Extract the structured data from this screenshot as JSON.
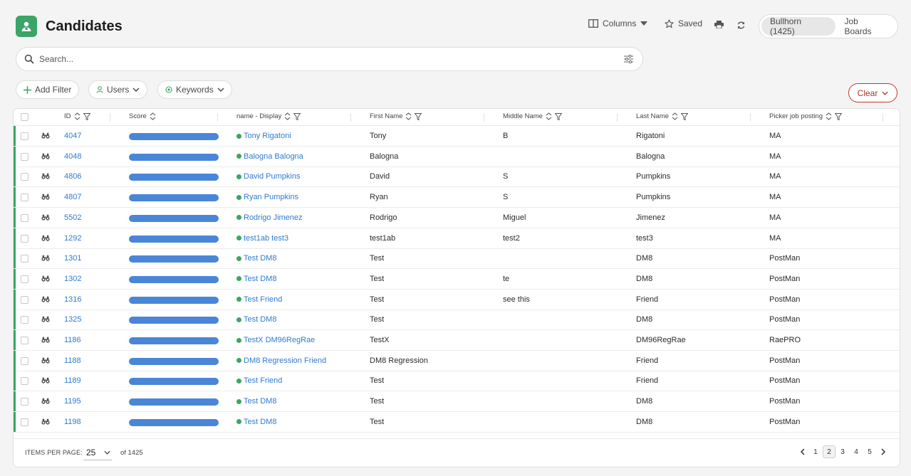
{
  "header": {
    "title": "Candidates",
    "columns_label": "Columns",
    "saved_label": "Saved",
    "tabs": [
      {
        "label": "Bullhorn (1425)",
        "active": true
      },
      {
        "label": "Job Boards",
        "active": false
      }
    ]
  },
  "search": {
    "placeholder": "Search..."
  },
  "filters": {
    "add_label": "Add Filter",
    "users_label": "Users",
    "keywords_label": "Keywords",
    "clear_label": "Clear"
  },
  "columns": [
    "ID",
    "Score",
    "name - Display",
    "First Name",
    "Middle Name",
    "Last Name",
    "Picker job posting"
  ],
  "rows": [
    {
      "id": "4047",
      "score": 1.0,
      "name": "Tony Rigatoni",
      "first": "Tony",
      "middle": "B",
      "last": "Rigatoni",
      "picker": "MA"
    },
    {
      "id": "4048",
      "score": 1.0,
      "name": "Balogna Balogna",
      "first": "Balogna",
      "middle": "",
      "last": "Balogna",
      "picker": "MA"
    },
    {
      "id": "4806",
      "score": 1.0,
      "name": "David Pumpkins",
      "first": "David",
      "middle": "S",
      "last": "Pumpkins",
      "picker": "MA"
    },
    {
      "id": "4807",
      "score": 1.0,
      "name": "Ryan Pumpkins",
      "first": "Ryan",
      "middle": "S",
      "last": "Pumpkins",
      "picker": "MA"
    },
    {
      "id": "5502",
      "score": 1.0,
      "name": "Rodrigo Jimenez",
      "first": "Rodrigo",
      "middle": "Miguel",
      "last": "Jimenez",
      "picker": "MA"
    },
    {
      "id": "1292",
      "score": 1.0,
      "name": "test1ab test3",
      "first": "test1ab",
      "middle": "test2",
      "last": "test3",
      "picker": "MA"
    },
    {
      "id": "1301",
      "score": 1.0,
      "name": "Test DM8",
      "first": "Test",
      "middle": "",
      "last": "DM8",
      "picker": "PostMan"
    },
    {
      "id": "1302",
      "score": 1.0,
      "name": "Test DM8",
      "first": "Test",
      "middle": "te",
      "last": "DM8",
      "picker": "PostMan"
    },
    {
      "id": "1316",
      "score": 1.0,
      "name": "Test Friend",
      "first": "Test",
      "middle": "see this",
      "last": "Friend",
      "picker": "PostMan"
    },
    {
      "id": "1325",
      "score": 1.0,
      "name": "Test DM8",
      "first": "Test",
      "middle": "",
      "last": "DM8",
      "picker": "PostMan"
    },
    {
      "id": "1186",
      "score": 1.0,
      "name": "TestX DM96RegRae",
      "first": "TestX",
      "middle": "",
      "last": "DM96RegRae",
      "picker": "RaePRO"
    },
    {
      "id": "1188",
      "score": 1.0,
      "name": "DM8 Regression Friend",
      "first": "DM8 Regression",
      "middle": "",
      "last": "Friend",
      "picker": "PostMan"
    },
    {
      "id": "1189",
      "score": 1.0,
      "name": "Test Friend",
      "first": "Test",
      "middle": "",
      "last": "Friend",
      "picker": "PostMan"
    },
    {
      "id": "1195",
      "score": 1.0,
      "name": "Test DM8",
      "first": "Test",
      "middle": "",
      "last": "DM8",
      "picker": "PostMan"
    },
    {
      "id": "1198",
      "score": 1.0,
      "name": "Test DM8",
      "first": "Test",
      "middle": "",
      "last": "DM8",
      "picker": "PostMan"
    }
  ],
  "footer": {
    "items_per_page_label": "ITEMS PER PAGE:",
    "items_per_page": "25",
    "of_total": "of 1425",
    "pages": [
      "1",
      "2",
      "3",
      "4",
      "5"
    ],
    "current_page": "2"
  },
  "colors": {
    "accent": "#3aa566",
    "link": "#2f7bd0",
    "score_bar": "#4a86d8",
    "clear": "#b03028"
  },
  "icons": [
    "person-icon",
    "columns-icon",
    "caret-down-icon",
    "star-icon",
    "print-icon",
    "refresh-icon",
    "search-icon",
    "tune-icon",
    "plus-icon",
    "user-icon",
    "keyword-icon",
    "chevron-down-icon",
    "sort-icon",
    "filter-icon",
    "binoculars-icon",
    "chevron-left-icon",
    "chevron-right-icon"
  ]
}
